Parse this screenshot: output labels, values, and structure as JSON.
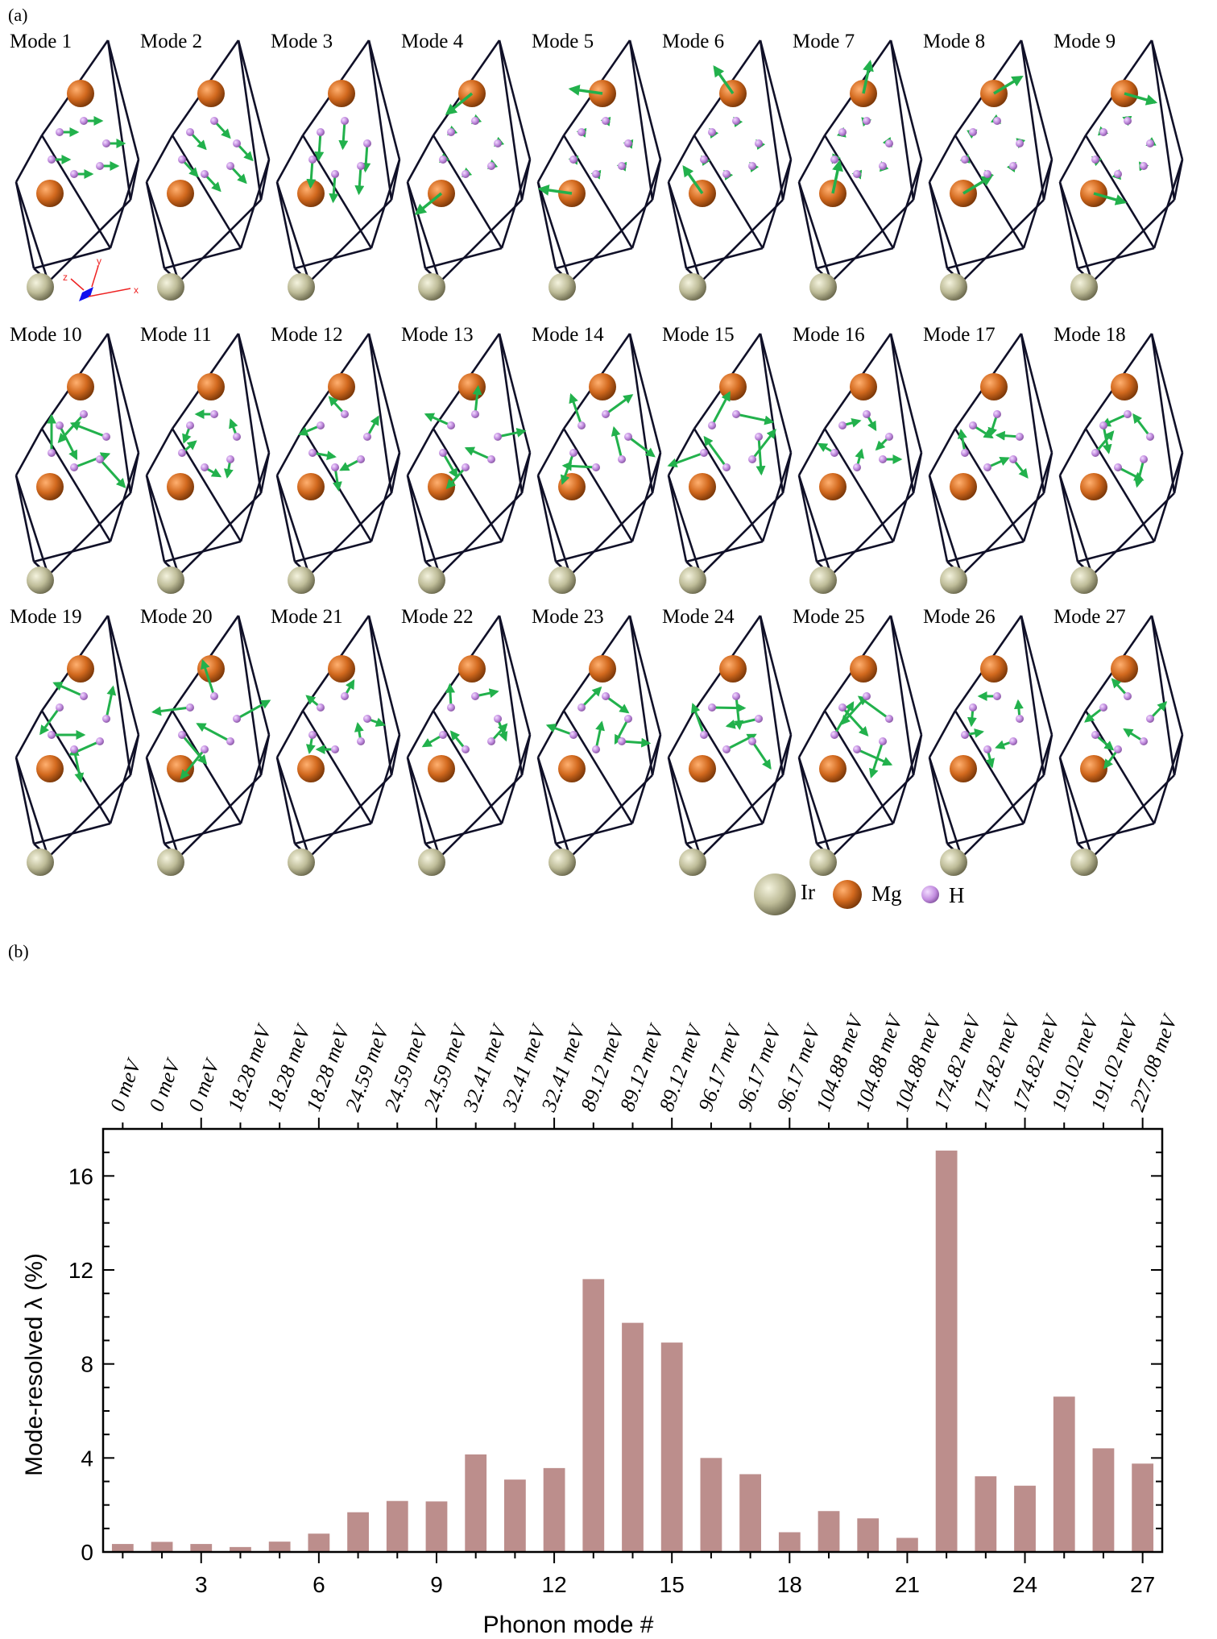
{
  "panel_a": {
    "label": "(a)",
    "modes": [
      "Mode 1",
      "Mode 2",
      "Mode 3",
      "Mode 4",
      "Mode 5",
      "Mode 6",
      "Mode 7",
      "Mode 8",
      "Mode 9",
      "Mode 10",
      "Mode 11",
      "Mode 12",
      "Mode 13",
      "Mode 14",
      "Mode 15",
      "Mode 16",
      "Mode 17",
      "Mode 18",
      "Mode 19",
      "Mode 20",
      "Mode 21",
      "Mode 22",
      "Mode 23",
      "Mode 24",
      "Mode 25",
      "Mode 26",
      "Mode 27"
    ],
    "axis_triad": {
      "x": "x",
      "y": "y",
      "z": "z"
    },
    "legend": [
      {
        "label": "Ir",
        "color": "#c8c6a4"
      },
      {
        "label": "Mg",
        "color": "#d2691e"
      },
      {
        "label": "H",
        "color": "#c38ee0"
      }
    ],
    "colors": {
      "frame": "#101028",
      "arrow": "#22b14c",
      "triad": "#ee2222",
      "triad_box": "#1010ee"
    }
  },
  "panel_b": {
    "label": "(b)"
  },
  "chart_data": {
    "type": "bar",
    "title": "",
    "xlabel": "Phonon mode #",
    "ylabel": "Mode-resolved λ (%)",
    "categories": [
      1,
      2,
      3,
      4,
      5,
      6,
      7,
      8,
      9,
      10,
      11,
      12,
      13,
      14,
      15,
      16,
      17,
      18,
      19,
      20,
      21,
      22,
      23,
      24,
      25,
      26,
      27
    ],
    "values": [
      0.34,
      0.43,
      0.34,
      0.21,
      0.44,
      0.78,
      1.69,
      2.17,
      2.15,
      4.15,
      3.08,
      3.57,
      11.61,
      9.75,
      8.91,
      4.0,
      3.31,
      0.84,
      1.74,
      1.43,
      0.6,
      17.08,
      3.22,
      2.82,
      6.61,
      4.41,
      3.76
    ],
    "xlim": [
      0.5,
      27.5
    ],
    "ylim": [
      0,
      18
    ],
    "xticks": [
      3,
      6,
      9,
      12,
      15,
      18,
      21,
      24,
      27
    ],
    "yticks": [
      0,
      4,
      8,
      12,
      16
    ],
    "top_axis_labels": [
      "0 meV",
      "0 meV",
      "0 meV",
      "18.28 meV",
      "18.28 meV",
      "18.28 meV",
      "24.59 meV",
      "24.59 meV",
      "24.59 meV",
      "32.41 meV",
      "32.41 meV",
      "32.41 meV",
      "89.12 meV",
      "89.12 meV",
      "89.12 meV",
      "96.17 meV",
      "96.17 meV",
      "96.17 meV",
      "104.88 meV",
      "104.88 meV",
      "104.88 meV",
      "174.82 meV",
      "174.82 meV",
      "174.82 meV",
      "191.02 meV",
      "191.02 meV",
      "227.08 meV"
    ],
    "bar_color": "#bc8e8c",
    "grid": false,
    "legend": "none"
  }
}
